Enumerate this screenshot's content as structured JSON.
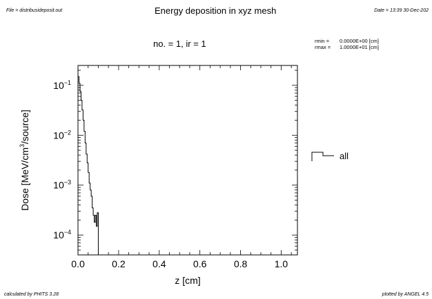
{
  "header": {
    "file": "File = distribusideposit.out",
    "date": "Date = 13:39 30-Dec-202",
    "title": "Energy deposition in xyz mesh",
    "subtitle": "no. =  1,  ir =  1"
  },
  "info": {
    "rmin_label": "rmin  =",
    "rmin_value": "0.0000E+00 [cm]",
    "rmax_label": "rmax  =",
    "rmax_value": "1.0000E+01 [cm]"
  },
  "footer": {
    "calculated": "calculated by PHITS 3.28",
    "plotted": "plotted by ANGEL 4.5"
  },
  "chart_data": {
    "type": "line",
    "step": true,
    "title": "Energy deposition in xyz mesh",
    "xlabel": "z [cm]",
    "ylabel": "Dose [MeV/cm3/source]",
    "ylabel_parts": [
      "Dose [MeV/cm",
      "3",
      "/source]"
    ],
    "yscale": "log",
    "xlim": [
      0.0,
      1.08
    ],
    "ylim": [
      4e-05,
      0.25
    ],
    "xticks": [
      0.0,
      0.2,
      0.4,
      0.6,
      0.8,
      1.0
    ],
    "xtick_labels": [
      "0.0",
      "0.2",
      "0.4",
      "0.6",
      "0.8",
      "1.0"
    ],
    "yticks": [
      0.1,
      0.01,
      0.001,
      0.0001
    ],
    "ytick_labels": [
      {
        "base": "10",
        "exp": "−1"
      },
      {
        "base": "10",
        "exp": "−2"
      },
      {
        "base": "10",
        "exp": "−3"
      },
      {
        "base": "10",
        "exp": "−4"
      }
    ],
    "legend": {
      "position": "right",
      "entries": [
        "all"
      ]
    },
    "series": [
      {
        "name": "all",
        "color": "#000000",
        "edges": [
          0.0,
          0.005,
          0.01,
          0.015,
          0.02,
          0.025,
          0.03,
          0.035,
          0.04,
          0.045,
          0.05,
          0.055,
          0.06,
          0.065,
          0.07,
          0.075,
          0.08,
          0.085,
          0.09,
          0.095,
          0.1,
          0.105
        ],
        "values": [
          0.15,
          0.11,
          0.075,
          0.05,
          0.032,
          0.02,
          0.012,
          0.007,
          0.0042,
          0.0028,
          0.0018,
          0.0011,
          0.0008,
          0.0006,
          0.00035,
          0.00025,
          0.00018,
          0.00025,
          0.00015,
          0.00028,
          4e-05
        ]
      }
    ]
  }
}
